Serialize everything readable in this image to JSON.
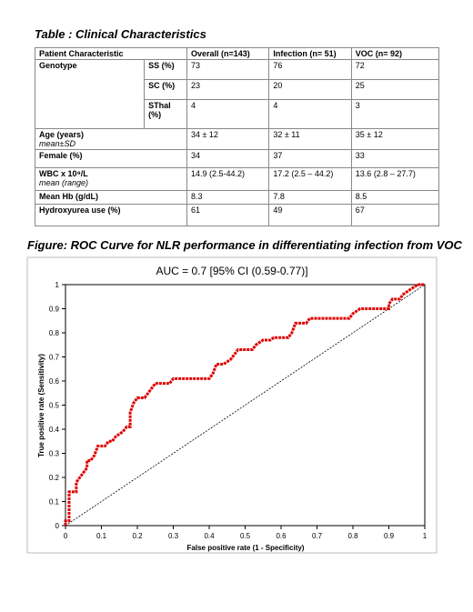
{
  "table": {
    "title": "Table : Clinical Characteristics",
    "header": [
      "Patient Characteristic",
      "Overall (n=143)",
      "Infection (n= 51)",
      "VOC (n= 92)"
    ],
    "genotype": {
      "label": "Genotype",
      "subrows": [
        {
          "label": "SS  (%)",
          "cells": [
            "73",
            "76",
            "72"
          ]
        },
        {
          "label": "SC (%)",
          "cells": [
            "23",
            "20",
            "25"
          ]
        },
        {
          "label": "SThal (%)",
          "cells": [
            "4",
            "4",
            "3"
          ]
        }
      ]
    },
    "rows": [
      {
        "label": "Age (years)",
        "note": "mean±SD",
        "cells": [
          "34 ± 12",
          "32 ± 11",
          "35 ± 12"
        ]
      },
      {
        "label": "Female (%)",
        "cells": [
          "34",
          "37",
          "33"
        ]
      },
      {
        "label": "WBC x 10⁹/L",
        "note": "mean (range)",
        "cells": [
          "14.9 (2.5-44.2)",
          "17.2 (2.5 – 44.2)",
          "13.6 (2.8 – 27.7)"
        ]
      },
      {
        "label": "Mean Hb (g/dL)",
        "cells": [
          "8.3",
          "7.8",
          "8.5"
        ]
      },
      {
        "label": "Hydroxyurea use (%)",
        "cells": [
          "61",
          "49",
          "67"
        ]
      }
    ]
  },
  "figure": {
    "title": "Figure: ROC Curve for NLR performance in differentiating infection from VOC"
  },
  "chart_data": {
    "type": "line",
    "title": "AUC = 0.7 [95% CI (0.59-0.77)]",
    "x_label": "False positive rate (1 - Specificity)",
    "y_label": "True positive rate (Sensitivity)",
    "color": "#e00000",
    "x": [
      0,
      0,
      0.01,
      0.01,
      0.03,
      0.03,
      0.04,
      0.05,
      0.06,
      0.06,
      0.07,
      0.08,
      0.09,
      0.11,
      0.12,
      0.13,
      0.14,
      0.16,
      0.17,
      0.18,
      0.18,
      0.19,
      0.2,
      0.22,
      0.23,
      0.24,
      0.25,
      0.29,
      0.3,
      0.4,
      0.41,
      0.42,
      0.44,
      0.46,
      0.47,
      0.48,
      0.52,
      0.53,
      0.55,
      0.57,
      0.58,
      0.62,
      0.63,
      0.64,
      0.67,
      0.68,
      0.79,
      0.8,
      0.82,
      0.9,
      0.9,
      0.91,
      0.93,
      0.94,
      0.96,
      0.98,
      1
    ],
    "values": [
      0,
      0.02,
      0.02,
      0.14,
      0.14,
      0.18,
      0.2,
      0.22,
      0.24,
      0.27,
      0.27,
      0.29,
      0.33,
      0.33,
      0.35,
      0.35,
      0.37,
      0.39,
      0.41,
      0.41,
      0.47,
      0.51,
      0.53,
      0.53,
      0.55,
      0.57,
      0.59,
      0.59,
      0.61,
      0.61,
      0.63,
      0.67,
      0.67,
      0.69,
      0.71,
      0.73,
      0.73,
      0.75,
      0.77,
      0.77,
      0.78,
      0.78,
      0.8,
      0.84,
      0.84,
      0.86,
      0.86,
      0.88,
      0.9,
      0.9,
      0.92,
      0.94,
      0.94,
      0.96,
      0.98,
      1,
      1
    ],
    "xlim": [
      0,
      1
    ],
    "ylim": [
      0,
      1
    ],
    "xticks": [
      0,
      0.1,
      0.2,
      0.3,
      0.4,
      0.5,
      0.6,
      0.7,
      0.8,
      0.9,
      1
    ],
    "yticks": [
      0,
      0.1,
      0.2,
      0.3,
      0.4,
      0.5,
      0.6,
      0.7,
      0.8,
      0.9,
      1
    ]
  }
}
